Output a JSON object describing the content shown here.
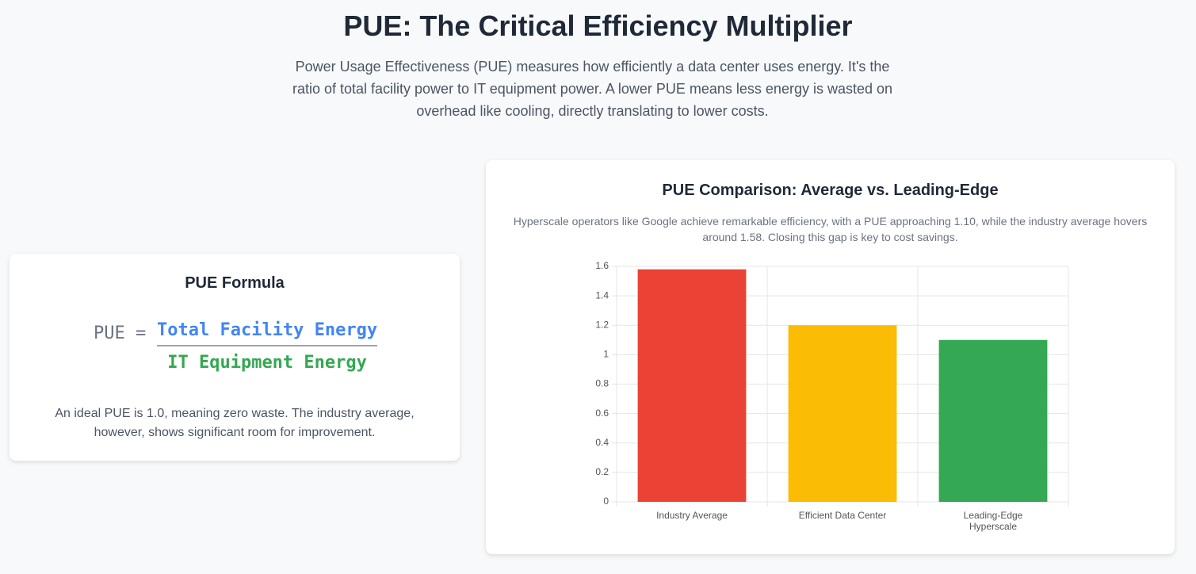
{
  "header": {
    "title": "PUE: The Critical Efficiency Multiplier",
    "intro": "Power Usage Effectiveness (PUE) measures how efficiently a data center uses energy. It's the ratio of total facility power to IT equipment power. A lower PUE means less energy is wasted on overhead like cooling, directly translating to lower costs."
  },
  "formula_card": {
    "title": "PUE Formula",
    "lhs": "PUE",
    "equals": "=",
    "numerator": "Total Facility Energy",
    "denominator": "IT Equipment Energy",
    "note": "An ideal PUE is 1.0, meaning zero waste. The industry average, however, shows significant room for improvement."
  },
  "chart_data": {
    "type": "bar",
    "title": "PUE Comparison: Average vs. Leading-Edge",
    "subtitle": "Hyperscale operators like Google achieve remarkable efficiency, with a PUE approaching 1.10, while the industry average hovers around 1.58. Closing this gap is key to cost savings.",
    "categories": [
      [
        "Industry Average"
      ],
      [
        "Efficient Data Center"
      ],
      [
        "Leading-Edge",
        "Hyperscale"
      ]
    ],
    "values": [
      1.58,
      1.2,
      1.1
    ],
    "colors": [
      "#ea4335",
      "#fbbc05",
      "#34a853"
    ],
    "ylim": [
      0,
      1.6
    ],
    "yticks": [
      0,
      0.2,
      0.4,
      0.6,
      0.8,
      1,
      1.2,
      1.4,
      1.6
    ],
    "grid": true
  }
}
